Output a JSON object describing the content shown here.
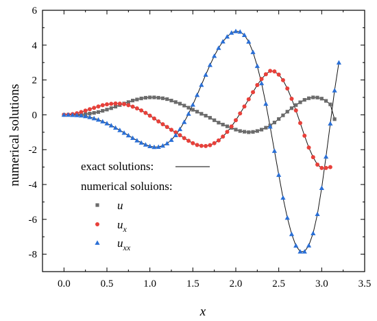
{
  "chart_data": {
    "type": "line",
    "xlabel": "x",
    "ylabel": "numerical solutions",
    "xlim": [
      -0.25,
      3.5
    ],
    "ylim": [
      -9,
      6
    ],
    "x_ticks": [
      0.0,
      0.5,
      1.0,
      1.5,
      2.0,
      2.5,
      3.0,
      3.5
    ],
    "x_tick_labels": [
      "0.0",
      "0.5",
      "1.0",
      "1.5",
      "2.0",
      "2.5",
      "3.0",
      "3.5"
    ],
    "y_ticks": [
      -8,
      -6,
      -4,
      -2,
      0,
      2,
      4,
      6
    ],
    "y_tick_labels": [
      "-8",
      "-6",
      "-4",
      "-2",
      "0",
      "2",
      "4",
      "6"
    ],
    "grid": false,
    "legend": {
      "placement": "lower-left",
      "exact_label": "exact solutions:",
      "numerical_label": "numerical soluions:",
      "entries": [
        {
          "name": "u",
          "base": "u",
          "sub": "",
          "marker": "square",
          "color": "#6b6b6b"
        },
        {
          "name": "u_x",
          "base": "u",
          "sub": "x",
          "marker": "circle",
          "color": "#e8403a"
        },
        {
          "name": "u_xx",
          "base": "u",
          "sub": "xx",
          "marker": "triangle",
          "color": "#2a6fd6"
        }
      ]
    },
    "series": [
      {
        "name": "u",
        "x_start": 0.0,
        "x_step": 0.05,
        "values": [
          0.0,
          0.0,
          0.0,
          0.01,
          0.02,
          0.04,
          0.07,
          0.11,
          0.16,
          0.23,
          0.3,
          0.38,
          0.47,
          0.56,
          0.65,
          0.73,
          0.82,
          0.88,
          0.94,
          0.98,
          1.0,
          1.0,
          0.98,
          0.95,
          0.9,
          0.82,
          0.73,
          0.64,
          0.53,
          0.41,
          0.29,
          0.18,
          0.06,
          -0.05,
          -0.17,
          -0.31,
          -0.45,
          -0.56,
          -0.66,
          -0.75,
          -0.85,
          -0.93,
          -0.97,
          -1.0,
          -0.98,
          -0.93,
          -0.85,
          -0.74,
          -0.61,
          -0.44,
          -0.24,
          -0.03,
          0.18,
          0.38,
          0.56,
          0.72,
          0.86,
          0.95,
          1.0,
          0.99,
          0.93,
          0.8,
          0.6,
          -0.25
        ]
      },
      {
        "name": "u_x",
        "x_start": 0.0,
        "x_step": 0.05,
        "values": [
          0.0,
          0.01,
          0.04,
          0.09,
          0.16,
          0.24,
          0.32,
          0.4,
          0.48,
          0.55,
          0.6,
          0.63,
          0.65,
          0.64,
          0.61,
          0.55,
          0.47,
          0.37,
          0.25,
          0.11,
          -0.05,
          -0.21,
          -0.38,
          -0.54,
          -0.7,
          -0.86,
          -1.01,
          -1.17,
          -1.34,
          -1.49,
          -1.63,
          -1.73,
          -1.78,
          -1.79,
          -1.74,
          -1.63,
          -1.47,
          -1.25,
          -0.98,
          -0.67,
          -0.31,
          0.08,
          0.48,
          0.89,
          1.3,
          1.71,
          2.06,
          2.33,
          2.52,
          2.49,
          2.31,
          1.99,
          1.51,
          0.92,
          0.25,
          -0.47,
          -1.2,
          -1.88,
          -2.43,
          -2.86,
          -3.05,
          -3.05,
          -3.0
        ]
      },
      {
        "name": "u_xx",
        "x_start": 0.0,
        "x_step": 0.05,
        "values": [
          0.0,
          0.0,
          -0.01,
          -0.02,
          -0.04,
          -0.08,
          -0.13,
          -0.2,
          -0.28,
          -0.38,
          -0.49,
          -0.61,
          -0.74,
          -0.88,
          -1.03,
          -1.18,
          -1.33,
          -1.47,
          -1.6,
          -1.71,
          -1.8,
          -1.85,
          -1.84,
          -1.77,
          -1.64,
          -1.44,
          -1.17,
          -0.82,
          -0.41,
          0.06,
          0.58,
          1.14,
          1.72,
          2.3,
          2.86,
          3.38,
          3.84,
          4.21,
          4.49,
          4.71,
          4.8,
          4.77,
          4.58,
          4.2,
          3.6,
          2.8,
          1.81,
          0.63,
          -0.68,
          -2.07,
          -3.45,
          -4.76,
          -5.91,
          -6.85,
          -7.51,
          -7.85,
          -7.85,
          -7.5,
          -6.8,
          -5.7,
          -4.2,
          -2.4,
          -0.5,
          1.4,
          3.0
        ]
      }
    ],
    "exact_line_x_end": 3.12
  }
}
